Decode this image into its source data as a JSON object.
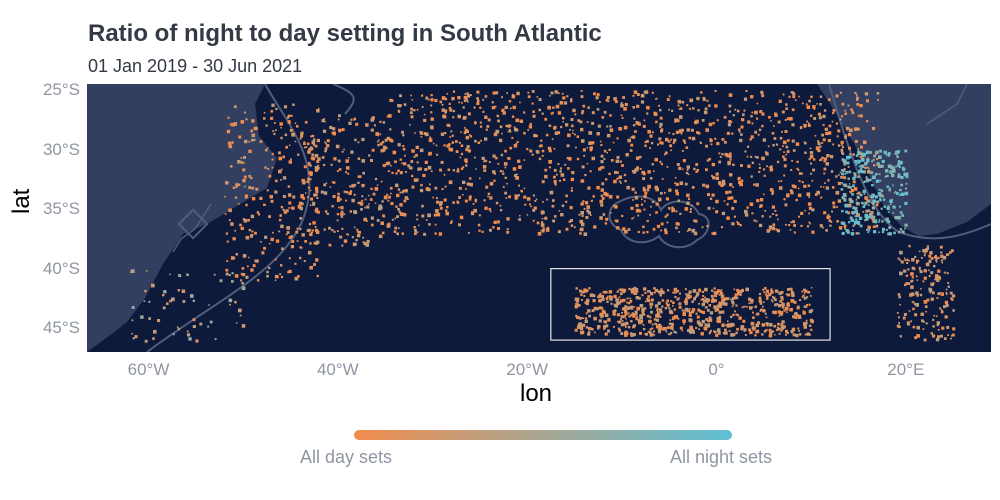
{
  "title": "Ratio of night to day setting in South Atlantic",
  "subtitle": "01 Jan 2019 - 30 Jun 2021",
  "axes": {
    "xlabel": "lon",
    "ylabel": "lat",
    "xticks": [
      "60°W",
      "40°W",
      "20°W",
      "0°",
      "20°E"
    ],
    "yticks": [
      "25°S",
      "30°S",
      "35°S",
      "40°S",
      "45°S"
    ],
    "lon_range": [
      -66.5,
      29
    ],
    "lat_range": [
      -47,
      -24.5
    ]
  },
  "legend": {
    "low_label": "All day sets",
    "high_label": "All night sets",
    "low_color": "#f28c4d",
    "high_color": "#5ec0d6"
  },
  "colors": {
    "ocean": "#0e1a3b",
    "land": "#333f60",
    "border": "#505d7c",
    "box": "#e6e6e6"
  },
  "chart_data": {
    "type": "heatmap",
    "title": "Ratio of night to day setting in South Atlantic",
    "subtitle": "01 Jan 2019 - 30 Jun 2021",
    "xlabel": "lon",
    "ylabel": "lat",
    "xlim": [
      -66.5,
      29
    ],
    "ylim": [
      -47,
      -24.5
    ],
    "legend": "bottom",
    "color_scale": [
      "All day sets",
      "All night sets"
    ],
    "highlight_box": {
      "lon": [
        -17.5,
        12
      ],
      "lat": [
        -46,
        -40
      ]
    },
    "clusters": [
      {
        "lon": [
          -52,
          -42
        ],
        "lat": [
          -41,
          -26
        ],
        "night_ratio": 0.1
      },
      {
        "lon": [
          -44,
          -35
        ],
        "lat": [
          -38,
          -27
        ],
        "night_ratio": 0.15
      },
      {
        "lon": [
          -35,
          17
        ],
        "lat": [
          -37,
          -25
        ],
        "night_ratio": 0.1
      },
      {
        "lon": [
          13,
          20
        ],
        "lat": [
          -37,
          -30
        ],
        "night_ratio": 0.85
      },
      {
        "lon": [
          -15,
          10
        ],
        "lat": [
          -45.5,
          -41.5
        ],
        "night_ratio": 0.15
      },
      {
        "lon": [
          19,
          25
        ],
        "lat": [
          -46,
          -38
        ],
        "night_ratio": 0.2
      },
      {
        "lon": [
          -62,
          -50
        ],
        "lat": [
          -46,
          -40
        ],
        "night_ratio": 0.4
      }
    ]
  }
}
